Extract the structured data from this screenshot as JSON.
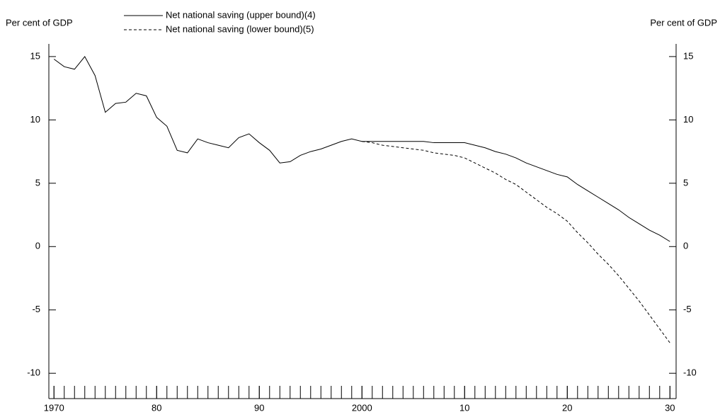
{
  "chart_data": {
    "type": "line",
    "y_label_left": "Per cent of GDP",
    "y_label_right": "Per cent of GDP",
    "x": [
      1970,
      1971,
      1972,
      1973,
      1974,
      1975,
      1976,
      1977,
      1978,
      1979,
      1980,
      1981,
      1982,
      1983,
      1984,
      1985,
      1986,
      1987,
      1988,
      1989,
      1990,
      1991,
      1992,
      1993,
      1994,
      1995,
      1996,
      1997,
      1998,
      1999,
      2000,
      2001,
      2002,
      2003,
      2004,
      2005,
      2006,
      2007,
      2008,
      2009,
      2010,
      2011,
      2012,
      2013,
      2014,
      2015,
      2016,
      2017,
      2018,
      2019,
      2020,
      2021,
      2022,
      2023,
      2024,
      2025,
      2026,
      2027,
      2028,
      2029,
      2030
    ],
    "series": [
      {
        "name": "Net national saving (upper bound)(4)",
        "color": "#000000",
        "dash": "none",
        "values": [
          14.8,
          14.2,
          14.0,
          15.0,
          13.5,
          10.6,
          11.3,
          11.4,
          12.1,
          11.9,
          10.2,
          9.5,
          7.6,
          7.4,
          8.5,
          8.2,
          8.0,
          7.8,
          8.6,
          8.9,
          8.2,
          7.6,
          6.6,
          6.7,
          7.2,
          7.5,
          7.7,
          8.0,
          8.3,
          8.5,
          8.3,
          8.3,
          8.3,
          8.3,
          8.3,
          8.3,
          8.3,
          8.2,
          8.2,
          8.2,
          8.2,
          8.0,
          7.8,
          7.5,
          7.3,
          7.0,
          6.6,
          6.3,
          6.0,
          5.7,
          5.5,
          4.9,
          4.4,
          3.9,
          3.4,
          2.9,
          2.3,
          1.8,
          1.3,
          0.9,
          0.4
        ]
      },
      {
        "name": "Net national saving (lower bound)(5)",
        "color": "#000000",
        "dash": "4 3",
        "values": [
          null,
          null,
          null,
          null,
          null,
          null,
          null,
          null,
          null,
          null,
          null,
          null,
          null,
          null,
          null,
          null,
          null,
          null,
          null,
          null,
          null,
          null,
          null,
          null,
          null,
          null,
          null,
          null,
          null,
          null,
          8.3,
          8.2,
          8.0,
          7.9,
          7.8,
          7.7,
          7.6,
          7.4,
          7.3,
          7.2,
          7.0,
          6.6,
          6.2,
          5.8,
          5.3,
          4.9,
          4.3,
          3.7,
          3.1,
          2.6,
          2.0,
          1.1,
          0.3,
          -0.6,
          -1.4,
          -2.3,
          -3.3,
          -4.3,
          -5.4,
          -6.5,
          -7.6
        ]
      }
    ],
    "xlim": [
      1969.5,
      2030.6
    ],
    "xticks": [
      1970,
      {
        "value": 1980,
        "label": "80"
      },
      {
        "value": 1990,
        "label": "90"
      },
      2000,
      {
        "value": 2010,
        "label": "10"
      },
      {
        "value": 2020,
        "label": "20"
      },
      {
        "value": 2030,
        "label": "30"
      }
    ],
    "x_minor_step": 1,
    "ylim": [
      -12,
      16
    ],
    "yticks": [
      -10,
      -5,
      0,
      5,
      10,
      15
    ],
    "grid": false
  }
}
